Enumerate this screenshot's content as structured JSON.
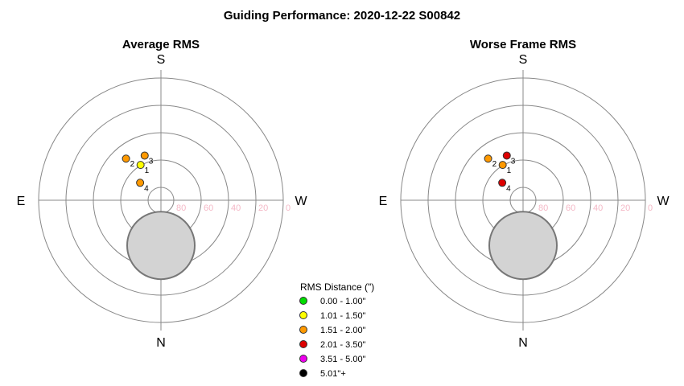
{
  "title": "Guiding Performance: 2020-12-22 S00842",
  "legend": {
    "title": "RMS Distance (\")",
    "entries": [
      {
        "label": "0.00 - 1.00\"",
        "color": "#00dd00"
      },
      {
        "label": "1.01 - 1.50\"",
        "color": "#ffff00"
      },
      {
        "label": "1.51 - 2.00\"",
        "color": "#ff9900"
      },
      {
        "label": "2.01 - 3.50\"",
        "color": "#dd0000"
      },
      {
        "label": "3.51 - 5.00\"",
        "color": "#ee00ee"
      },
      {
        "label": "5.01\"+",
        "color": "#000000"
      }
    ]
  },
  "chart_data": [
    {
      "type": "scatter",
      "projection": "polar",
      "title": "Average RMS",
      "directions": {
        "top": "S",
        "bottom": "N",
        "left": "E",
        "right": "W"
      },
      "radial_ticks": [
        "80",
        "60",
        "40",
        "20",
        "0"
      ],
      "altitude_range": [
        90,
        0
      ],
      "points": [
        {
          "label": "1",
          "altitude": 60,
          "azimuth_deg_from_south_toward_east": 30,
          "color_class": "1.01 - 1.50\""
        },
        {
          "label": "2",
          "altitude": 50,
          "azimuth_deg_from_south_toward_east": 40,
          "color_class": "1.51 - 2.00\""
        },
        {
          "label": "3",
          "altitude": 55,
          "azimuth_deg_from_south_toward_east": 20,
          "color_class": "1.51 - 2.00\""
        },
        {
          "label": "4",
          "altitude": 70,
          "azimuth_deg_from_south_toward_east": 50,
          "color_class": "1.51 - 2.00\""
        }
      ],
      "moon": {
        "altitude": 70,
        "azimuth": "N"
      }
    },
    {
      "type": "scatter",
      "projection": "polar",
      "title": "Worse Frame RMS",
      "directions": {
        "top": "S",
        "bottom": "N",
        "left": "E",
        "right": "W"
      },
      "radial_ticks": [
        "80",
        "60",
        "40",
        "20",
        "0"
      ],
      "altitude_range": [
        90,
        0
      ],
      "points": [
        {
          "label": "1",
          "altitude": 60,
          "azimuth_deg_from_south_toward_east": 30,
          "color_class": "1.51 - 2.00\""
        },
        {
          "label": "2",
          "altitude": 50,
          "azimuth_deg_from_south_toward_east": 40,
          "color_class": "1.51 - 2.00\""
        },
        {
          "label": "3",
          "altitude": 55,
          "azimuth_deg_from_south_toward_east": 20,
          "color_class": "2.01 - 3.50\""
        },
        {
          "label": "4",
          "altitude": 70,
          "azimuth_deg_from_south_toward_east": 50,
          "color_class": "2.01 - 3.50\""
        }
      ],
      "moon": {
        "altitude": 70,
        "azimuth": "N"
      }
    }
  ]
}
